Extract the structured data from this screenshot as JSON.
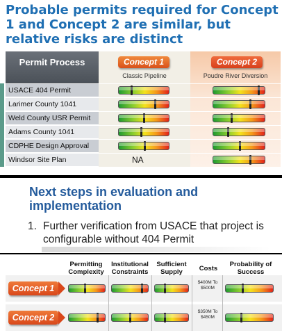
{
  "slide1": {
    "title": "Probable permits required for Concept 1 and Concept 2 are similar, but relative risks are distinct",
    "header": {
      "permit_process": "Permit Process",
      "concept1": "Concept 1",
      "concept1_sub": "Classic Pipeline",
      "concept2": "Concept 2",
      "concept2_sub": "Poudre River Diversion"
    },
    "rows": [
      {
        "label": "USACE 404 Permit",
        "c1": 0.25,
        "c2": 0.88
      },
      {
        "label": "Larimer County 1041",
        "c1": 0.72,
        "c2": 0.72
      },
      {
        "label": "Weld County USR Permit",
        "c1": 0.5,
        "c2": 0.35
      },
      {
        "label": "Adams County 1041",
        "c1": 0.45,
        "c2": 0.28
      },
      {
        "label": "CDPHE Design Approval",
        "c1": 0.52,
        "c2": 0.52
      },
      {
        "label": "Windsor Site Plan",
        "c1_text": "NA",
        "c2": 0.72
      }
    ]
  },
  "slide2": {
    "title": "Next steps in evaluation and implementation",
    "item_number": "1.",
    "item_text": "Further verification from USACE that project is configurable without 404 Permit"
  },
  "slide3": {
    "columns": {
      "complexity": "Permitting Complexity",
      "constraints": "Institutional Constraints",
      "supply": "Sufficient Supply",
      "costs": "Costs",
      "success": "Probability of Success"
    },
    "rows": [
      {
        "label": "Concept 1",
        "complexity": 0.45,
        "constraints": 0.82,
        "supply": 0.3,
        "cost_text": "$400M To $500M",
        "success": 0.35
      },
      {
        "label": "Concept 2",
        "complexity": 0.78,
        "constraints": 0.5,
        "supply": 0.3,
        "cost_text": "$350M To $450M",
        "success": 0.32
      }
    ]
  }
}
